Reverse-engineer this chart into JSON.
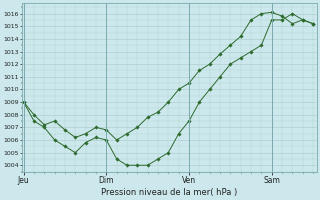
{
  "xlabel": "Pression niveau de la mer( hPa )",
  "bg_color": "#cce8ec",
  "line_color": "#2d6a2d",
  "grid_color": "#aacccc",
  "ylim": [
    1003.5,
    1016.8
  ],
  "yticks": [
    1004,
    1005,
    1006,
    1007,
    1008,
    1009,
    1010,
    1011,
    1012,
    1013,
    1014,
    1015,
    1016
  ],
  "day_positions": [
    0,
    48,
    96,
    144
  ],
  "day_labels": [
    "Jeu",
    "Dim",
    "Ven",
    "Sam"
  ],
  "xlim": [
    -1,
    170
  ],
  "series1_x": [
    0,
    6,
    12,
    18,
    24,
    30,
    36,
    42,
    48,
    54,
    60,
    66,
    72,
    78,
    84,
    90,
    96,
    102,
    108,
    114,
    120,
    126,
    132,
    138,
    144,
    150,
    156,
    162,
    168
  ],
  "series1_y": [
    1009.0,
    1008.0,
    1007.2,
    1007.5,
    1006.8,
    1006.2,
    1006.5,
    1007.0,
    1006.8,
    1006.0,
    1006.5,
    1007.0,
    1007.8,
    1008.2,
    1009.0,
    1010.0,
    1010.5,
    1011.5,
    1012.0,
    1012.8,
    1013.5,
    1014.2,
    1015.5,
    1016.0,
    1016.1,
    1015.8,
    1015.2,
    1015.5,
    1015.2
  ],
  "series2_x": [
    0,
    6,
    12,
    18,
    24,
    30,
    36,
    42,
    48,
    54,
    60,
    66,
    72,
    78,
    84,
    90,
    96,
    102,
    108,
    114,
    120,
    126,
    132,
    138,
    144,
    150,
    156,
    162,
    168
  ],
  "series2_y": [
    1009.0,
    1007.5,
    1007.0,
    1006.0,
    1005.5,
    1005.0,
    1005.8,
    1006.2,
    1006.0,
    1004.5,
    1004.0,
    1004.0,
    1004.0,
    1004.5,
    1005.0,
    1006.5,
    1007.5,
    1009.0,
    1010.0,
    1011.0,
    1012.0,
    1012.5,
    1013.0,
    1013.5,
    1015.5,
    1015.5,
    1016.0,
    1015.5,
    1015.2
  ]
}
